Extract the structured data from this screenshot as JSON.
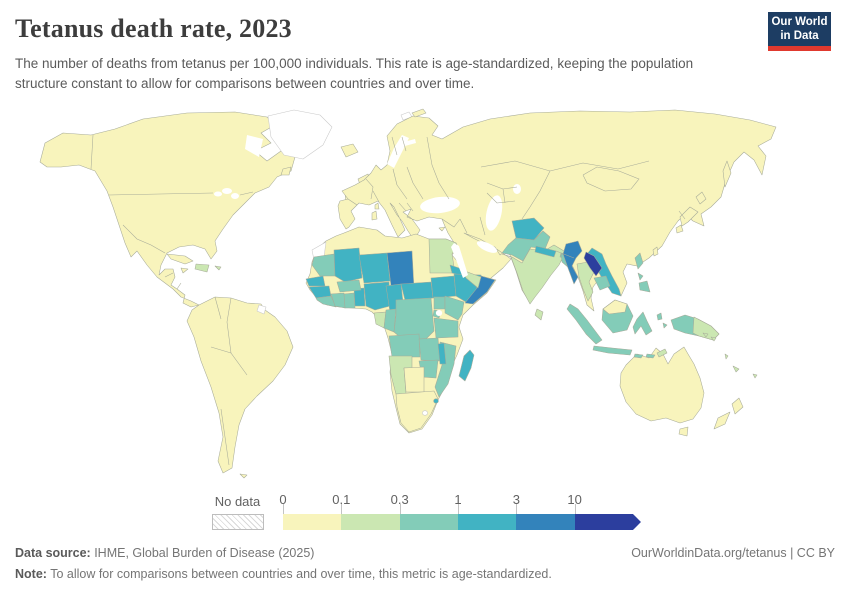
{
  "header": {
    "title": "Tetanus death rate, 2023",
    "subtitle": "The number of deaths from tetanus per 100,000 individuals. This rate is age-standardized, keeping the population structure constant to allow for comparisons between countries and over time."
  },
  "logo": {
    "line1": "Our World",
    "line2": "in Data",
    "bg_color": "#1d3d63",
    "accent_color": "#e0392e"
  },
  "legend": {
    "no_data_label": "No data",
    "bins": [
      {
        "threshold": "0",
        "color": "#f8f4bc"
      },
      {
        "threshold": "0.1",
        "color": "#cbe7b2"
      },
      {
        "threshold": "0.3",
        "color": "#83ccb8"
      },
      {
        "threshold": "1",
        "color": "#41b3c3"
      },
      {
        "threshold": "3",
        "color": "#3383bb"
      },
      {
        "threshold": "10",
        "color": "#2c3e9e"
      }
    ]
  },
  "map": {
    "border_color": "#a7ab99",
    "no_data_color": "#ffffff",
    "no_data_border": "#c9c9c9",
    "water_color": "#ffffff",
    "regions": {
      "north-america": 0,
      "newfoundland": 0,
      "cuba": 0,
      "jamaica": 0,
      "south-america": 0,
      "falklands": 0,
      "iceland": 0,
      "uk": 0,
      "ireland": 0,
      "eurasia": 0,
      "africa": 0,
      "sicily": 0,
      "sardinia": 0,
      "corsica": 0,
      "crete": 0,
      "cyprus": 0,
      "japan": 0,
      "taiwan": 0,
      "sakhalin": 0,
      "novaya-zemlya": 0,
      "malaysia-borneo": 0,
      "australia": 0,
      "tasmania": 0,
      "new-zealand": 0,
      "botswana": 0,
      "south-africa": 0,
      "hispaniola": 1,
      "puerto-rico": 1,
      "egypt": 1,
      "gabon": 1,
      "namibia": 1,
      "yemen": 1,
      "india": 1,
      "sri-lanka": 1,
      "thailand": 1,
      "png-east": 1,
      "timor": 1,
      "solomons": 1,
      "vanuatu": 1,
      "new-caledonia": 1,
      "fiji": 1,
      "mauritania": 2,
      "sierra-leone-liberia": 2,
      "cote-divoire": 2,
      "ghana": 2,
      "burkina-faso": 2,
      "congo": 2,
      "drc": 2,
      "uganda": 2,
      "kenya": 2,
      "rwanda-burundi": 2,
      "tanzania": 2,
      "angola": 2,
      "zambia": 2,
      "mozambique": 2,
      "zimbabwe": 2,
      "pakistan": 2,
      "bhutan": 2,
      "bangladesh": 2,
      "cambodia": 2,
      "sumatra": 2,
      "java": 2,
      "borneo": 2,
      "sulawesi": 2,
      "philippines": 2,
      "moluccas": 2,
      "new-guinea": 2,
      "lesser-sunda": 2,
      "mali": 3,
      "niger": 3,
      "senegal": 3,
      "guinea": 3,
      "togo-benin": 3,
      "nigeria": 3,
      "cameroon": 3,
      "central-african-republic": 3,
      "south-sudan": 3,
      "ethiopia": 3,
      "eritrea": 3,
      "malawi": 3,
      "eswatini": 3,
      "madagascar": 3,
      "afghanistan": 3,
      "nepal": 3,
      "vietnam": 3,
      "chad": 4,
      "somalia": 4,
      "myanmar": 4,
      "laos": 5,
      "greenland": "nodata",
      "french-guiana": "nodata",
      "western-sahara": "nodata",
      "lesotho": "nodata",
      "svalbard": "nodata",
      "hudson-bay": "water",
      "great-lakes": "water",
      "black-sea": "water",
      "caspian-sea": "water",
      "baltic-sea": "water",
      "gulf-of-finland": "water",
      "persian-gulf": "water",
      "red-sea": "water",
      "aral-sea": "water",
      "lake-victoria": "water"
    }
  },
  "footer": {
    "source_label": "Data source:",
    "source_text": " IHME, Global Burden of Disease (2025)",
    "note_label": "Note:",
    "note_text": " To allow for comparisons between countries and over time, this metric is age-standardized.",
    "link_text": "OurWorldinData.org/tetanus | CC BY"
  }
}
